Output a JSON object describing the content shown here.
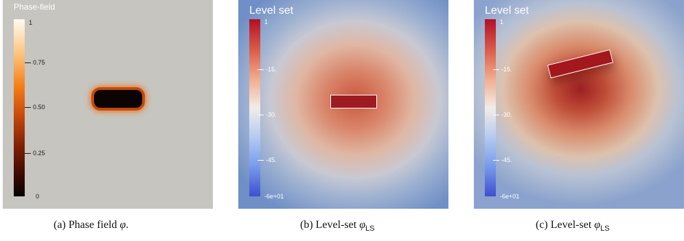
{
  "panels": [
    {
      "title": "Phase-field",
      "ticks": [
        "1",
        "0.75",
        "0.50",
        "0.25",
        "0"
      ],
      "caption": {
        "prefix": "(a) Phase field ",
        "symbol": "φ",
        "subscript": "",
        "suffix": "."
      }
    },
    {
      "title": "Level set",
      "ticks": [
        "1",
        "-15.",
        "-30.",
        "-45.",
        "-6e+01"
      ],
      "caption": {
        "prefix": "(b) Level-set ",
        "symbol": "φ",
        "subscript": "LS",
        "suffix": ""
      }
    },
    {
      "title": "Level set",
      "ticks": [
        "1",
        "-15.",
        "-30.",
        "-45.",
        "-6e+01"
      ],
      "caption": {
        "prefix": "(c) Level-set ",
        "symbol": "φ",
        "subscript": "LS",
        "suffix": ""
      }
    }
  ],
  "colors": {
    "phase_field_background": "#c6c5c0",
    "level_set_inside": "#9c1c22",
    "level_set_outside": "#6f8fc6",
    "interface_outline": "#ffffff"
  }
}
